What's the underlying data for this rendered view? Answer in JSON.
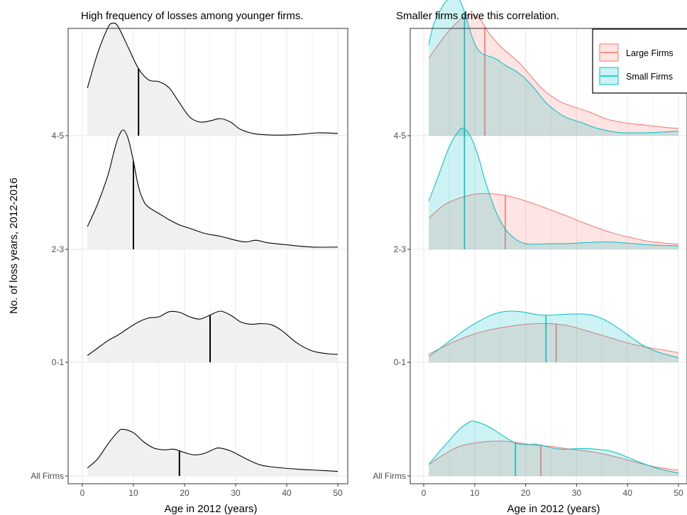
{
  "ylabel": "No. of loss years, 2012-2016",
  "colors": {
    "large": "#F8766D",
    "small": "#00BFC4",
    "fill_all": "#f0f0f0",
    "grid": "#ebebeb"
  },
  "chart_data": [
    {
      "type": "area",
      "title": "High frequency of losses among younger firms.",
      "xlabel": "Age in 2012 (years)",
      "ylabel": "No. of loss years, 2012-2016",
      "xlim": [
        0,
        50
      ],
      "xticks": [
        0,
        10,
        20,
        30,
        40,
        50
      ],
      "rows": [
        "All Firms",
        "0-1",
        "2-3",
        "4-5"
      ],
      "series": [
        {
          "group": "All Firms",
          "median": 19,
          "x": [
            1,
            3,
            5,
            7,
            8,
            10,
            12,
            14,
            16,
            18,
            20,
            22,
            24,
            26,
            27,
            29,
            31,
            33,
            35,
            38,
            42,
            46,
            50
          ],
          "y": [
            0.14,
            0.3,
            0.56,
            0.78,
            0.82,
            0.76,
            0.6,
            0.49,
            0.46,
            0.47,
            0.41,
            0.37,
            0.4,
            0.48,
            0.49,
            0.44,
            0.35,
            0.26,
            0.19,
            0.15,
            0.12,
            0.1,
            0.08
          ]
        },
        {
          "group": "0-1",
          "median": 25,
          "x": [
            1,
            3,
            5,
            7,
            9,
            11,
            13,
            15,
            17,
            19,
            21,
            23,
            25,
            27,
            29,
            31,
            33,
            35,
            37,
            39,
            42,
            45,
            48,
            50
          ],
          "y": [
            0.12,
            0.25,
            0.38,
            0.48,
            0.6,
            0.71,
            0.78,
            0.8,
            0.89,
            0.88,
            0.8,
            0.76,
            0.83,
            0.9,
            0.83,
            0.71,
            0.67,
            0.68,
            0.66,
            0.56,
            0.34,
            0.2,
            0.15,
            0.14
          ]
        },
        {
          "group": "2-3",
          "median": 10,
          "x": [
            1,
            3,
            5,
            6,
            7,
            8,
            9,
            10,
            11,
            12,
            13,
            15,
            17,
            19,
            21,
            24,
            27,
            30,
            32,
            34,
            36,
            40,
            45,
            50
          ],
          "y": [
            0.4,
            0.8,
            1.3,
            1.65,
            1.96,
            2.1,
            1.94,
            1.55,
            1.1,
            0.85,
            0.74,
            0.63,
            0.52,
            0.43,
            0.37,
            0.28,
            0.23,
            0.16,
            0.13,
            0.16,
            0.12,
            0.08,
            0.04,
            0.04
          ]
        },
        {
          "group": "4-5",
          "median": 11,
          "x": [
            1,
            3,
            5,
            6,
            7,
            9,
            11,
            13,
            15,
            17,
            19,
            21,
            23,
            25,
            27,
            29,
            31,
            34,
            38,
            42,
            46,
            50
          ],
          "y": [
            0.84,
            1.45,
            1.9,
            1.98,
            1.92,
            1.55,
            1.18,
            0.98,
            0.95,
            0.84,
            0.58,
            0.33,
            0.24,
            0.26,
            0.3,
            0.24,
            0.11,
            0.03,
            0.01,
            0.02,
            0.05,
            0.04
          ]
        }
      ]
    },
    {
      "type": "area",
      "title": "Smaller firms drive this correlation.",
      "xlabel": "Age in 2012 (years)",
      "xlim": [
        0,
        50
      ],
      "xticks": [
        0,
        10,
        20,
        30,
        40,
        50
      ],
      "rows": [
        "All Firms",
        "0-1",
        "2-3",
        "4-5"
      ],
      "legend": {
        "position": "top-right",
        "items": [
          "Large Firms",
          "Small Firms"
        ]
      },
      "series": [
        {
          "name": "Large Firms",
          "group": "All Firms",
          "median": 23,
          "x": [
            1,
            4,
            7,
            10,
            13,
            16,
            19,
            22,
            25,
            28,
            31,
            34,
            37,
            40,
            43,
            46,
            50
          ],
          "y": [
            0.2,
            0.38,
            0.52,
            0.58,
            0.61,
            0.61,
            0.58,
            0.54,
            0.52,
            0.48,
            0.45,
            0.41,
            0.35,
            0.28,
            0.21,
            0.15,
            0.1
          ]
        },
        {
          "name": "Small Firms",
          "group": "All Firms",
          "median": 18,
          "x": [
            1,
            3,
            5,
            7,
            9,
            10,
            12,
            14,
            16,
            18,
            20,
            22,
            24,
            26,
            28,
            30,
            32,
            34,
            36,
            38,
            40,
            43,
            46,
            50
          ],
          "y": [
            0.2,
            0.42,
            0.62,
            0.82,
            0.95,
            0.96,
            0.9,
            0.8,
            0.68,
            0.58,
            0.55,
            0.56,
            0.52,
            0.48,
            0.47,
            0.48,
            0.48,
            0.47,
            0.45,
            0.4,
            0.33,
            0.22,
            0.13,
            0.05
          ]
        },
        {
          "name": "Large Firms",
          "group": "0-1",
          "median": 26,
          "x": [
            1,
            4,
            7,
            10,
            13,
            16,
            19,
            22,
            25,
            28,
            31,
            34,
            37,
            40,
            43,
            46,
            50
          ],
          "y": [
            0.14,
            0.28,
            0.4,
            0.5,
            0.57,
            0.62,
            0.66,
            0.68,
            0.68,
            0.65,
            0.58,
            0.5,
            0.42,
            0.34,
            0.28,
            0.23,
            0.17
          ]
        },
        {
          "name": "Small Firms",
          "group": "0-1",
          "median": 24,
          "x": [
            1,
            4,
            7,
            10,
            13,
            15,
            17,
            19,
            21,
            23,
            25,
            27,
            29,
            31,
            33,
            35,
            37,
            39,
            41,
            43,
            46,
            50
          ],
          "y": [
            0.1,
            0.3,
            0.5,
            0.68,
            0.82,
            0.88,
            0.9,
            0.89,
            0.86,
            0.83,
            0.83,
            0.84,
            0.85,
            0.85,
            0.83,
            0.77,
            0.67,
            0.55,
            0.42,
            0.3,
            0.18,
            0.08
          ]
        },
        {
          "name": "Large Firms",
          "group": "2-3",
          "median": 16,
          "x": [
            1,
            4,
            7,
            10,
            13,
            16,
            19,
            22,
            25,
            28,
            31,
            34,
            37,
            40,
            43,
            46,
            50
          ],
          "y": [
            0.55,
            0.78,
            0.9,
            0.97,
            0.98,
            0.95,
            0.88,
            0.79,
            0.69,
            0.59,
            0.48,
            0.38,
            0.29,
            0.22,
            0.16,
            0.12,
            0.09
          ]
        },
        {
          "name": "Small Firms",
          "group": "2-3",
          "median": 8,
          "x": [
            1,
            3,
            5,
            7,
            8,
            9,
            10,
            11,
            12,
            14,
            16,
            18,
            20,
            22,
            25,
            28,
            32,
            36,
            40,
            44,
            50
          ],
          "y": [
            0.85,
            1.32,
            1.8,
            2.1,
            2.12,
            2.02,
            1.82,
            1.55,
            1.22,
            0.7,
            0.36,
            0.18,
            0.1,
            0.09,
            0.1,
            0.1,
            0.12,
            0.13,
            0.11,
            0.08,
            0.06
          ]
        },
        {
          "name": "Large Firms",
          "group": "4-5",
          "median": 12,
          "x": [
            1,
            3,
            5,
            7,
            9,
            11,
            13,
            15,
            17,
            19,
            21,
            23,
            25,
            27,
            30,
            33,
            36,
            40,
            44,
            48,
            50
          ],
          "y": [
            1.36,
            1.62,
            1.85,
            2.03,
            2.13,
            2.05,
            1.78,
            1.58,
            1.42,
            1.26,
            1.05,
            0.85,
            0.7,
            0.59,
            0.49,
            0.4,
            0.29,
            0.22,
            0.18,
            0.14,
            0.13
          ]
        },
        {
          "name": "Small Firms",
          "group": "4-5",
          "median": 8,
          "x": [
            1,
            2,
            4,
            5,
            6,
            7,
            8,
            9,
            10,
            11,
            12,
            14,
            16,
            18,
            20,
            22,
            24,
            26,
            28,
            31,
            34,
            38,
            42,
            46,
            50
          ],
          "y": [
            1.6,
            1.97,
            2.32,
            2.41,
            2.45,
            2.4,
            2.18,
            1.88,
            1.62,
            1.48,
            1.42,
            1.36,
            1.24,
            1.14,
            1.0,
            0.8,
            0.58,
            0.43,
            0.32,
            0.23,
            0.13,
            0.06,
            0.05,
            0.06,
            0.08
          ]
        }
      ]
    }
  ]
}
